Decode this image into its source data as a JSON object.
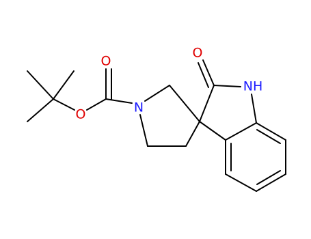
{
  "atoms": [
    {
      "label": "O"
    },
    {
      "label": "O"
    },
    {
      "label": "N"
    },
    {
      "label": "O"
    },
    {
      "label": "NH"
    }
  ]
}
